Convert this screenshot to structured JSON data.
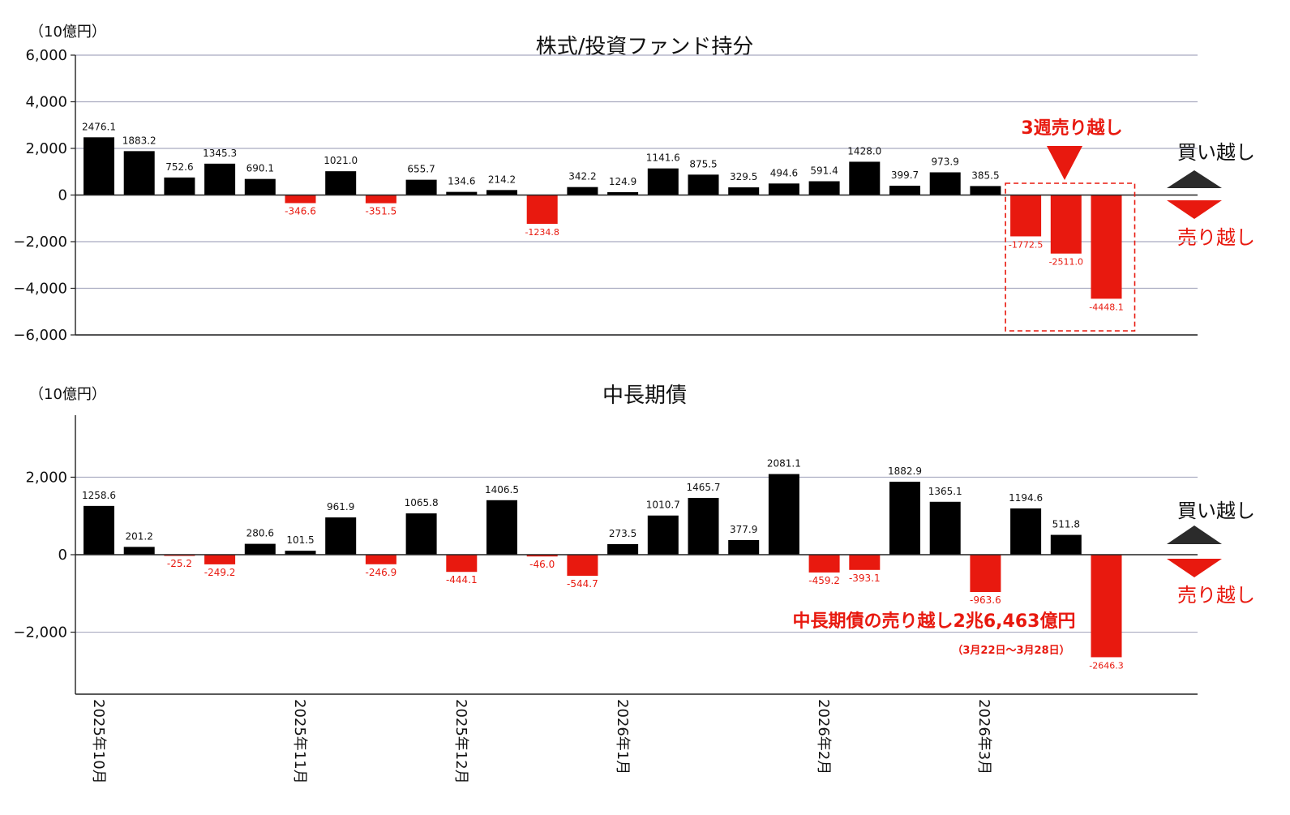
{
  "colors": {
    "positive": "#000000",
    "negative": "#e8190f",
    "accent": "#e8190f",
    "grid": "#a9abc0",
    "up_triangle": "#2b2b2b"
  },
  "chart_data": [
    {
      "type": "bar",
      "title": "株式/投資ファンド持分",
      "unit_label": "（10億円）",
      "ylim": [
        -6000,
        6000
      ],
      "yticks": [
        6000,
        4000,
        2000,
        0,
        -2000,
        -4000,
        -6000
      ],
      "ytick_labels": [
        "6,000",
        "4,000",
        "2,000",
        "0",
        "−2,000",
        "−4,000",
        "−6,000"
      ],
      "grid": true,
      "values": [
        2476.1,
        1883.2,
        752.6,
        1345.3,
        690.1,
        -346.6,
        1021.0,
        -351.5,
        655.7,
        134.6,
        214.2,
        -1234.8,
        342.2,
        124.9,
        1141.6,
        875.5,
        329.5,
        494.6,
        591.4,
        1428.0,
        399.7,
        973.9,
        385.5,
        -1772.5,
        -2511.0,
        -4448.1
      ],
      "value_labels": [
        "2476.1",
        "1883.2",
        "752.6",
        "1345.3",
        "690.1",
        "-346.6",
        "1021.0",
        "-351.5",
        "655.7",
        "134.6",
        "214.2",
        "-1234.8",
        "342.2",
        "124.9",
        "1141.6",
        "875.5",
        "329.5",
        "494.6",
        "591.4",
        "1428.0",
        "399.7",
        "973.9",
        "385.5",
        "-1772.5",
        "-2511.0",
        "-4448.1"
      ],
      "annotation": "3週売り越し",
      "highlight_range": [
        23,
        25
      ],
      "buy_label": "買い越し",
      "sell_label": "売り越し"
    },
    {
      "type": "bar",
      "title": "中長期債",
      "unit_label": "（10億円）",
      "ylim": [
        -3600,
        3600
      ],
      "yticks": [
        2000,
        0,
        -2000
      ],
      "ytick_labels": [
        "2,000",
        "0",
        "−2,000"
      ],
      "grid": true,
      "values": [
        1258.6,
        201.2,
        -25.2,
        -249.2,
        280.6,
        101.5,
        961.9,
        -246.9,
        1065.8,
        -444.1,
        1406.5,
        -46.0,
        -544.7,
        273.5,
        1010.7,
        1465.7,
        377.9,
        2081.1,
        -459.2,
        -393.1,
        1882.9,
        1365.1,
        -963.6,
        1194.6,
        511.8,
        -2646.3
      ],
      "value_labels": [
        "1258.6",
        "201.2",
        "-25.2",
        "-249.2",
        "280.6",
        "101.5",
        "961.9",
        "-246.9",
        "1065.8",
        "-444.1",
        "1406.5",
        "-46.0",
        "-544.7",
        "273.5",
        "1010.7",
        "1465.7",
        "377.9",
        "2081.1",
        "-459.2",
        "-393.1",
        "1882.9",
        "1365.1",
        "-963.6",
        "1194.6",
        "511.8",
        "-2646.3"
      ],
      "annotation": "中長期債の売り越し2兆6,463億円",
      "annotation_sub": "（3月22日～3月28日）",
      "buy_label": "買い越し",
      "sell_label": "売り越し"
    }
  ],
  "x_axis": {
    "month_labels": [
      "2025年10月",
      "2025年11月",
      "2025年12月",
      "2026年1月",
      "2026年2月",
      "2026年3月"
    ],
    "month_start_index": [
      0,
      5,
      9,
      13,
      18,
      22
    ]
  }
}
